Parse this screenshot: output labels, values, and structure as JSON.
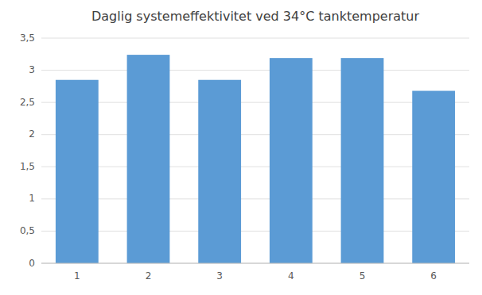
{
  "chart_data": {
    "type": "bar",
    "title": "Daglig systemeffektivitet ved 34°C tanktemperatur",
    "categories": [
      "1",
      "2",
      "3",
      "4",
      "5",
      "6"
    ],
    "values": [
      2.85,
      3.24,
      2.85,
      3.19,
      3.19,
      2.68
    ],
    "color": "#5B9BD5",
    "ylim": [
      0,
      3.5
    ],
    "yticks": [
      0,
      {
        "value": 0.5,
        "label": "0,5"
      },
      1,
      {
        "value": 1.5,
        "label": "1,5"
      },
      2,
      {
        "value": 2.5,
        "label": "2,5"
      },
      3,
      {
        "value": 3.5,
        "label": "3,5"
      }
    ],
    "grid": true
  }
}
